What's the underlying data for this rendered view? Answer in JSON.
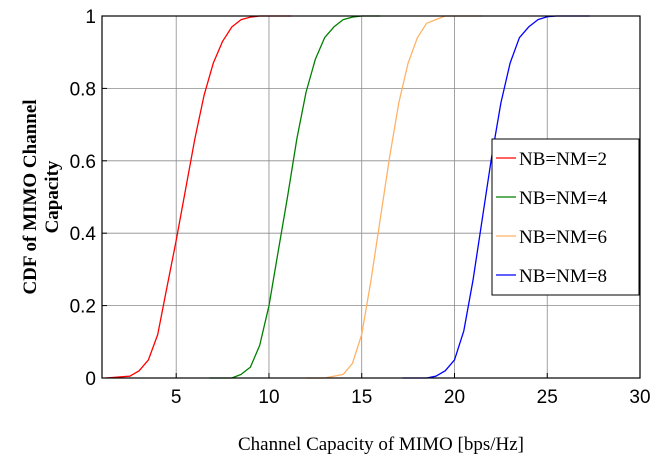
{
  "chart_data": {
    "type": "line",
    "xlabel": "Channel Capacity of MIMO [bps/Hz]",
    "ylabel_lines": [
      "CDF of MIMO Channel",
      "Capacity"
    ],
    "xlim": [
      1,
      30
    ],
    "ylim": [
      0,
      1
    ],
    "xticks": [
      5,
      10,
      15,
      20,
      25,
      30
    ],
    "yticks": [
      0,
      0.2,
      0.4,
      0.6,
      0.8,
      1
    ],
    "grid": true,
    "legend_position": "right",
    "series": [
      {
        "name": "NB=NM=2",
        "color": "#ff0000",
        "x": [
          1.2,
          2.5,
          3.0,
          3.5,
          4.0,
          4.5,
          5.0,
          5.5,
          6.0,
          6.5,
          7.0,
          7.5,
          8.0,
          8.5,
          9.0,
          9.5,
          10.0,
          11.2
        ],
        "y": [
          0.0,
          0.005,
          0.02,
          0.05,
          0.12,
          0.25,
          0.38,
          0.52,
          0.66,
          0.78,
          0.87,
          0.93,
          0.97,
          0.99,
          0.997,
          1.0,
          1.0,
          1.0
        ]
      },
      {
        "name": "NB=NM=4",
        "color": "#008000",
        "x": [
          6.8,
          8.0,
          8.5,
          9.0,
          9.5,
          10.0,
          10.5,
          11.0,
          11.5,
          12.0,
          12.5,
          13.0,
          13.5,
          14.0,
          14.5,
          15.0,
          15.5,
          16.0
        ],
        "y": [
          0.0,
          0.0,
          0.01,
          0.03,
          0.09,
          0.2,
          0.35,
          0.5,
          0.66,
          0.79,
          0.88,
          0.94,
          0.97,
          0.99,
          0.997,
          1.0,
          1.0,
          1.0
        ]
      },
      {
        "name": "NB=NM=6",
        "color": "#ffb266",
        "x": [
          12.0,
          13.0,
          14.0,
          14.5,
          15.0,
          15.5,
          16.0,
          16.5,
          17.0,
          17.5,
          18.0,
          18.5,
          19.0,
          19.5,
          20.0,
          21.5
        ],
        "y": [
          0.0,
          0.0,
          0.01,
          0.04,
          0.12,
          0.27,
          0.44,
          0.61,
          0.76,
          0.87,
          0.94,
          0.98,
          0.99,
          1.0,
          1.0,
          1.0
        ]
      },
      {
        "name": "NB=NM=8",
        "color": "#0000ff",
        "x": [
          17.2,
          18.5,
          19.0,
          19.5,
          20.0,
          20.5,
          21.0,
          21.5,
          22.0,
          22.5,
          23.0,
          23.5,
          24.0,
          24.5,
          25.0,
          25.5,
          26.0,
          27.3
        ],
        "y": [
          0.0,
          0.0,
          0.005,
          0.02,
          0.05,
          0.13,
          0.27,
          0.44,
          0.61,
          0.76,
          0.87,
          0.94,
          0.97,
          0.99,
          0.998,
          1.0,
          1.0,
          1.0
        ]
      }
    ]
  }
}
